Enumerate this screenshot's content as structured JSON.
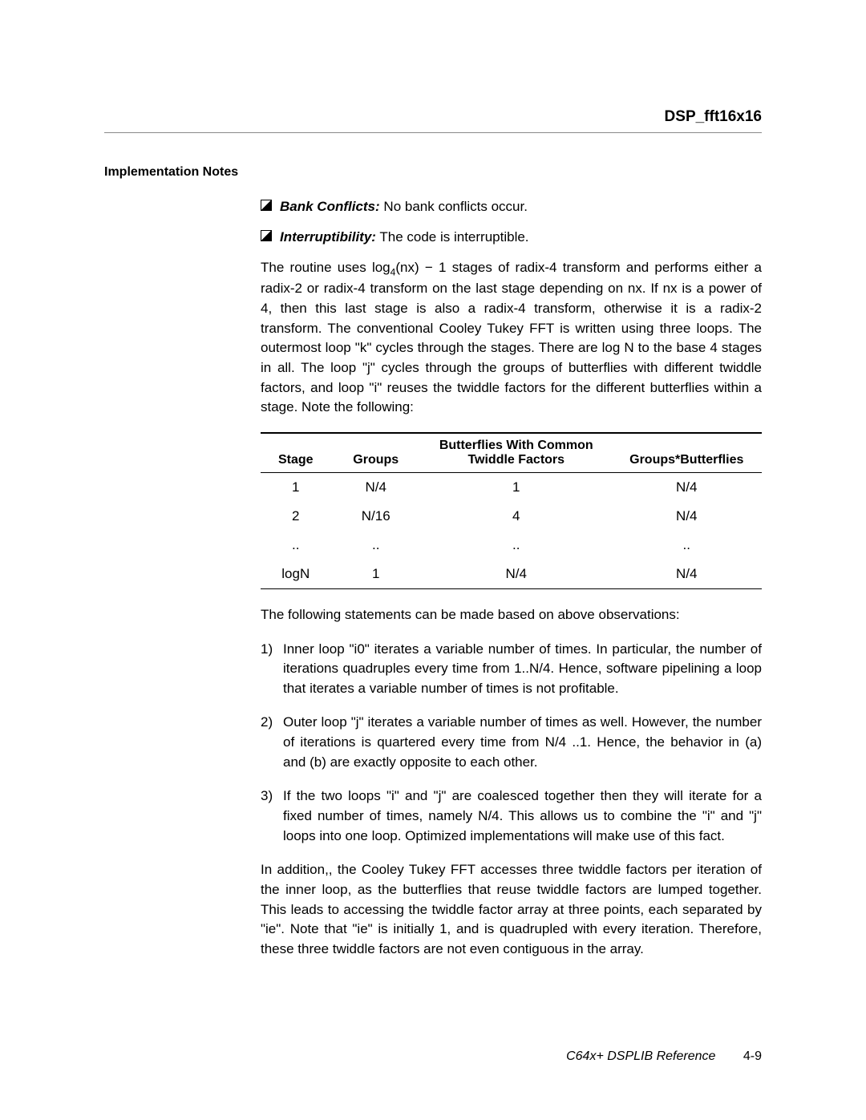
{
  "header": {
    "title": "DSP_fft16x16"
  },
  "section": {
    "label": "Implementation Notes"
  },
  "bullets": [
    {
      "lead": "Bank Conflicts:",
      "rest": " No bank conflicts occur."
    },
    {
      "lead": "Interruptibility:",
      "rest": " The code is interruptible."
    }
  ],
  "para1_a": "The routine uses log",
  "para1_sub": "4",
  "para1_b": "(nx) − 1 stages of radix-4 transform and performs either a radix-2 or radix-4 transform on the last stage depending on nx. If nx is a power of 4, then this last stage is also a radix-4 transform, otherwise it is a radix-2 transform. The conventional Cooley Tukey FFT is written using three loops. The outermost loop \"k\" cycles through the stages. There are log N to the base 4 stages in all. The loop \"j\" cycles through the groups of butterflies with different twiddle factors, and loop \"i\" reuses the twiddle factors for the different butterflies within a stage. Note the following:",
  "table": {
    "headers": {
      "stage": "Stage",
      "groups": "Groups",
      "bf": "Butterflies With Common Twiddle Factors",
      "gb": "Groups*Butterflies"
    },
    "rows": [
      {
        "stage": "1",
        "groups": "N/4",
        "bf": "1",
        "gb": "N/4"
      },
      {
        "stage": "2",
        "groups": "N/16",
        "bf": "4",
        "gb": "N/4"
      },
      {
        "stage": "..",
        "groups": "..",
        "bf": "..",
        "gb": ".."
      },
      {
        "stage": "logN",
        "groups": "1",
        "bf": "N/4",
        "gb": "N/4"
      }
    ]
  },
  "para2": "The following statements can be made based on above observations:",
  "list": [
    {
      "n": "1)",
      "t": "Inner loop \"i0\" iterates a variable number of times. In particular, the number of iterations quadruples every time from 1..N/4. Hence, software pipelining a loop that iterates a variable number of times is not profitable."
    },
    {
      "n": "2)",
      "t": "Outer loop \"j\" iterates a variable number of times as well. However, the number of iterations is quartered every time from N/4 ..1. Hence, the behavior in (a) and (b) are exactly opposite to each other."
    },
    {
      "n": "3)",
      "t": "If the two loops \"i\" and \"j\" are coalesced together then they will iterate for a fixed number of times, namely N/4. This allows us to combine the \"i\" and \"j\" loops into one loop. Optimized implementations will make use of this fact."
    }
  ],
  "para3": "In addition,, the Cooley Tukey FFT accesses three twiddle factors per iteration of the inner loop, as the butterflies that reuse twiddle factors are lumped together. This leads to accessing the twiddle factor array at three points, each separated by \"ie\". Note that \"ie\" is initially 1, and is quadrupled with every iteration. Therefore, these three twiddle factors are not even contiguous in the array.",
  "footer": {
    "ref": "C64x+ DSPLIB Reference",
    "page": "4-9"
  }
}
